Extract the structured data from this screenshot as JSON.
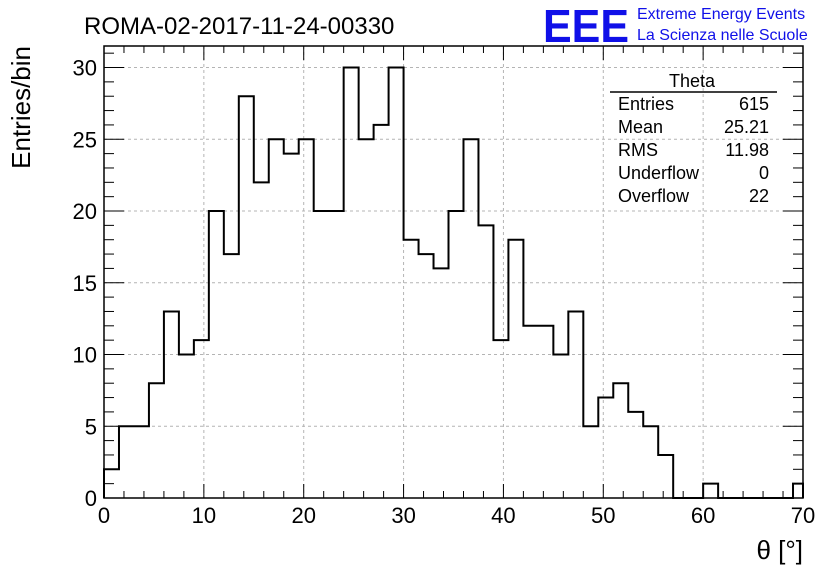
{
  "header": {
    "run_title": "ROMA-02-2017-11-24-00330",
    "logo_text": "EEE",
    "logo_line1": "Extreme Energy Events",
    "logo_line2": "La Scienza nelle Scuole"
  },
  "stats": {
    "title": "Theta",
    "rows": [
      {
        "label": "Entries",
        "value": "615"
      },
      {
        "label": "Mean",
        "value": "25.21"
      },
      {
        "label": "RMS",
        "value": "11.98"
      },
      {
        "label": "Underflow",
        "value": "0"
      },
      {
        "label": "Overflow",
        "value": "22"
      }
    ]
  },
  "colors": {
    "logo": "#1010e8",
    "grid": "#b4b4b4",
    "line": "#000000"
  },
  "chart_data": {
    "type": "histogram",
    "title": "",
    "xlabel": "θ [°]",
    "ylabel": "Entries/bin",
    "xlim": [
      0,
      70
    ],
    "ylim": [
      0,
      31.5
    ],
    "grid": true,
    "x_ticks": [
      0,
      10,
      20,
      30,
      40,
      50,
      60,
      70
    ],
    "y_ticks": [
      0,
      5,
      10,
      15,
      20,
      25,
      30
    ],
    "bin_width": 1.5,
    "bin_edges_start": 0,
    "values": [
      2,
      5,
      5,
      8,
      13,
      10,
      11,
      20,
      17,
      28,
      22,
      25,
      24,
      25,
      20,
      20,
      30,
      25,
      26,
      30,
      18,
      17,
      16,
      20,
      25,
      19,
      11,
      18,
      12,
      12,
      10,
      13,
      5,
      7,
      8,
      6,
      5,
      3,
      0,
      0,
      1,
      0,
      0,
      0,
      0,
      0,
      1
    ]
  }
}
